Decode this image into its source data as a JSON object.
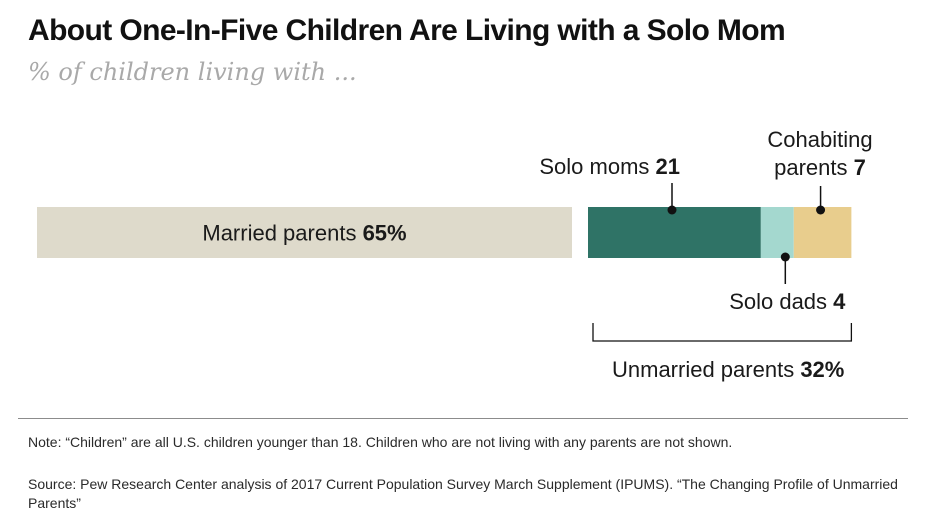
{
  "title": "About One-In-Five Children Are Living with a Solo Mom",
  "subtitle": "% of children living with ...",
  "colors": {
    "married": "#dedacb",
    "solo_moms": "#2f7366",
    "solo_dads": "#a4d8cf",
    "cohabiting": "#e8cd8d"
  },
  "chart_data": {
    "type": "bar",
    "orientation": "horizontal-stacked",
    "unit": "%",
    "segments": [
      {
        "key": "married",
        "label": "Married parents",
        "value_text": "65%",
        "value": 65
      },
      {
        "key": "solo_moms",
        "label": "Solo moms",
        "value_text": "21",
        "value": 21
      },
      {
        "key": "solo_dads",
        "label": "Solo dads",
        "value_text": "4",
        "value": 4
      },
      {
        "key": "cohabiting",
        "label_line1": "Cohabiting",
        "label_line2": "parents",
        "value_text": "7",
        "value": 7
      }
    ],
    "group": {
      "label": "Unmarried parents",
      "value_text": "32%",
      "value": 32
    }
  },
  "note": "Note: “Children” are all U.S. children younger than 18. Children who are not living with any parents are not shown.",
  "source": "Source: Pew Research Center analysis of 2017 Current Population Survey March Supplement (IPUMS). “The Changing Profile of Unmarried Parents”"
}
